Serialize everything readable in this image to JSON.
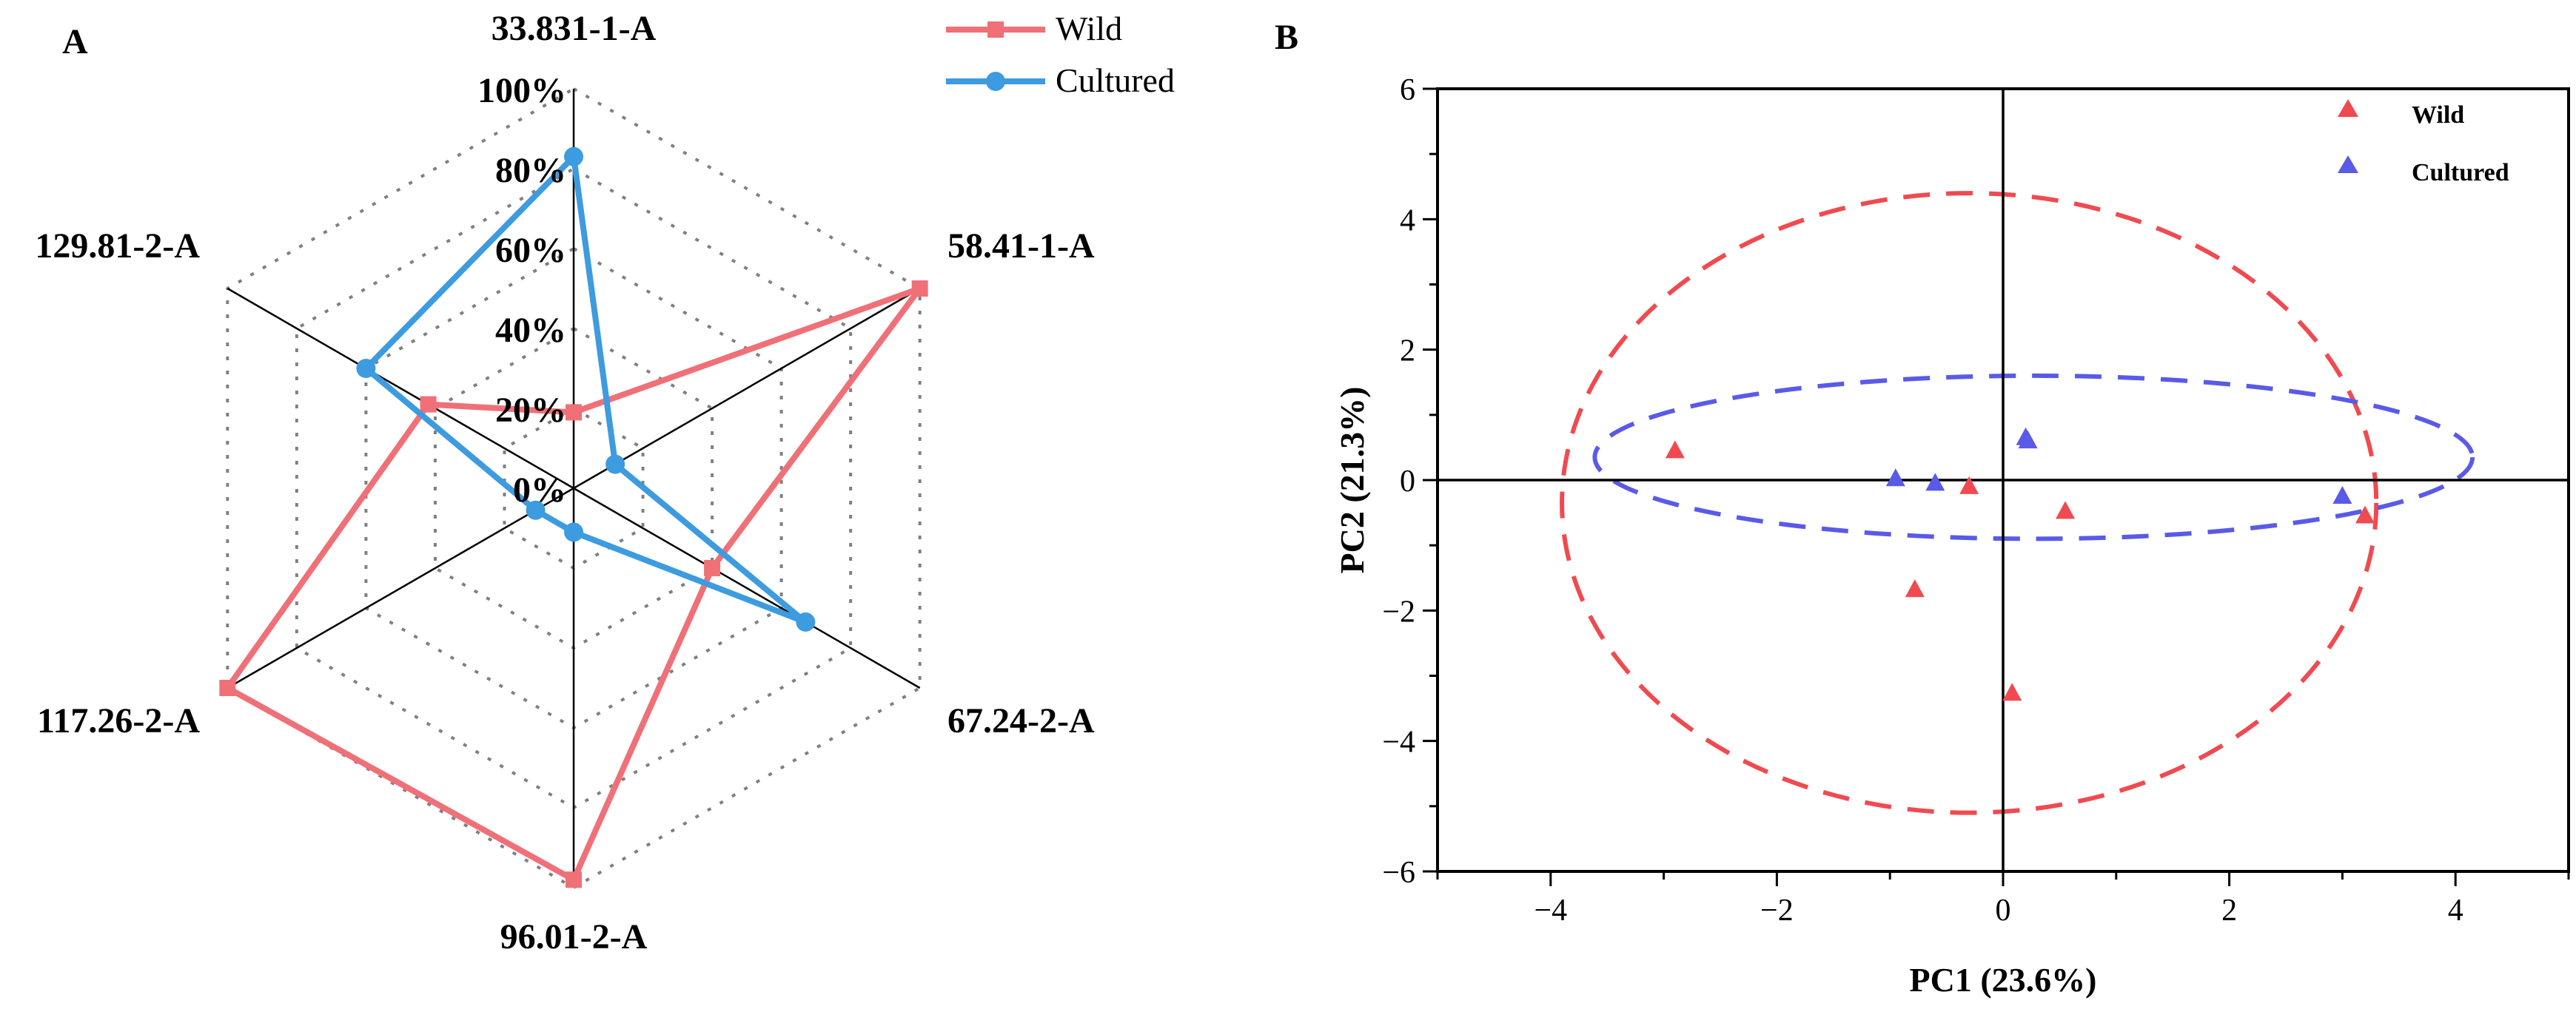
{
  "colors": {
    "wild": "#f07078",
    "cultured": "#3d9be0",
    "pca_wild": "#f04a50",
    "pca_cultured": "#5a5ae8",
    "axis": "#000000",
    "grid": "#808080"
  },
  "chart_data": [
    {
      "type": "radar",
      "panel_label": "A",
      "axes": [
        "33.831-1-A",
        "58.41-1-A",
        "67.24-2-A",
        "96.01-2-A",
        "117.26-2-A",
        "129.81-2-A"
      ],
      "radial_ticks": [
        "0%",
        "20%",
        "40%",
        "60%",
        "80%",
        "100%"
      ],
      "rmax": 100,
      "legend": [
        "Wild",
        "Cultured"
      ],
      "series": [
        {
          "name": "Wild",
          "values": [
            19,
            100,
            40,
            98,
            100,
            42
          ]
        },
        {
          "name": "Cultured",
          "values": [
            83,
            12,
            67,
            11,
            11,
            60
          ]
        }
      ]
    },
    {
      "type": "scatter",
      "panel_label": "B",
      "xlabel": "PC1 (23.6%)",
      "ylabel": "PC2 (21.3%)",
      "xlim": [
        -5,
        5
      ],
      "ylim": [
        -6,
        6
      ],
      "xticks": [
        "-4",
        "-2",
        "0",
        "2",
        "4"
      ],
      "yticks": [
        "-6",
        "-4",
        "-2",
        "0",
        "2",
        "4",
        "6"
      ],
      "legend": [
        "Wild",
        "Cultured"
      ],
      "series": [
        {
          "name": "Wild",
          "points": [
            [
              -2.9,
              0.45
            ],
            [
              -0.78,
              -1.68
            ],
            [
              -0.3,
              -0.1
            ],
            [
              0.08,
              -3.27
            ],
            [
              0.55,
              -0.48
            ],
            [
              3.2,
              -0.55
            ]
          ]
        },
        {
          "name": "Cultured",
          "points": [
            [
              -0.95,
              0.02
            ],
            [
              -0.6,
              -0.05
            ],
            [
              0.2,
              0.65
            ],
            [
              0.22,
              0.6
            ],
            [
              3.0,
              -0.25
            ]
          ]
        }
      ],
      "ellipses": [
        {
          "name": "Wild",
          "center": [
            -0.3,
            -0.35
          ],
          "radii": [
            3.6,
            4.75
          ]
        },
        {
          "name": "Cultured",
          "center": [
            0.27,
            0.35
          ],
          "radii": [
            3.88,
            1.25
          ]
        }
      ]
    }
  ]
}
